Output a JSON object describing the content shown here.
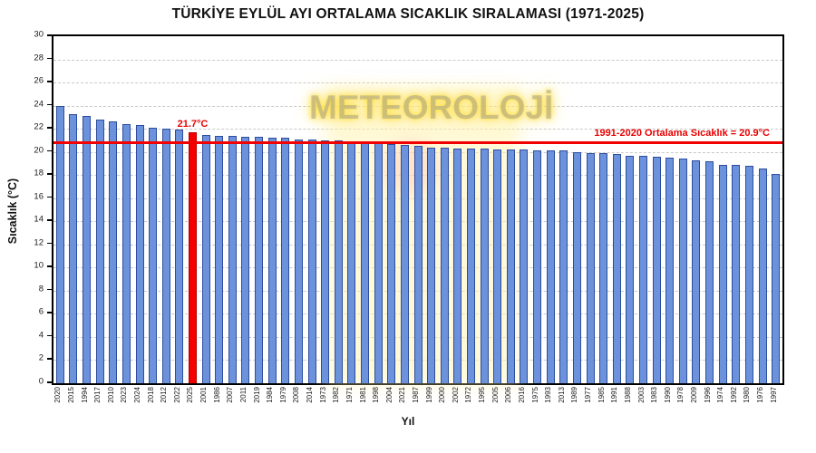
{
  "title": "TÜRKİYE EYLÜL AYI ORTALAMA SICAKLIK SIRALAMASI (1971-2025)",
  "watermark": "METEOROLOJİ",
  "axes": {
    "x_label": "Yıl",
    "y_label": "Sıcaklık (°C)",
    "y_ticks": [
      0,
      2,
      4,
      6,
      8,
      10,
      12,
      14,
      16,
      18,
      20,
      22,
      24,
      26,
      28,
      30
    ]
  },
  "average_line": {
    "label": "1991-2020 Ortalama Sıcaklık = 20.9°C",
    "value": 20.9,
    "color": "#f00000"
  },
  "highlight": {
    "year": "2025",
    "label": "21.7°C",
    "value": 21.7,
    "color": "#f50000"
  },
  "colors": {
    "bar_fill": "#6c92dc",
    "bar_border": "#2d4d9e",
    "grid": "#c9c9c9"
  },
  "chart_data": {
    "type": "bar",
    "title": "TÜRKİYE EYLÜL AYI ORTALAMA SICAKLIK SIRALAMASI (1971-2025)",
    "xlabel": "Yıl",
    "ylabel": "Sıcaklık (°C)",
    "ylim": [
      0,
      30
    ],
    "y_tick_step": 2,
    "grid": true,
    "sorted": "descending by temperature",
    "highlight_index": 10,
    "reference_line": {
      "value": 20.9,
      "label": "1991-2020 Ortalama Sıcaklık = 20.9°C"
    },
    "categories": [
      "2020",
      "2015",
      "1994",
      "2017",
      "2010",
      "2023",
      "2024",
      "2018",
      "2012",
      "2022",
      "2025",
      "2001",
      "1986",
      "2007",
      "2011",
      "2019",
      "1984",
      "1979",
      "2008",
      "2014",
      "1973",
      "1982",
      "1971",
      "1981",
      "1998",
      "2004",
      "2021",
      "1987",
      "1999",
      "2000",
      "2002",
      "1972",
      "1995",
      "2005",
      "2006",
      "2016",
      "1975",
      "1993",
      "2013",
      "1989",
      "1977",
      "1985",
      "1991",
      "1988",
      "2003",
      "1983",
      "1990",
      "1978",
      "2009",
      "1996",
      "1974",
      "1992",
      "1980",
      "1976",
      "1997"
    ],
    "values": [
      24.0,
      23.3,
      23.1,
      22.8,
      22.6,
      22.4,
      22.3,
      22.1,
      22.0,
      21.9,
      21.7,
      21.5,
      21.4,
      21.4,
      21.3,
      21.3,
      21.2,
      21.2,
      21.1,
      21.1,
      21.0,
      21.0,
      20.9,
      20.8,
      20.8,
      20.7,
      20.6,
      20.5,
      20.4,
      20.4,
      20.3,
      20.3,
      20.3,
      20.2,
      20.2,
      20.2,
      20.1,
      20.1,
      20.1,
      20.0,
      19.9,
      19.9,
      19.8,
      19.7,
      19.7,
      19.6,
      19.5,
      19.4,
      19.3,
      19.2,
      18.9,
      18.9,
      18.8,
      18.6,
      18.1
    ]
  }
}
